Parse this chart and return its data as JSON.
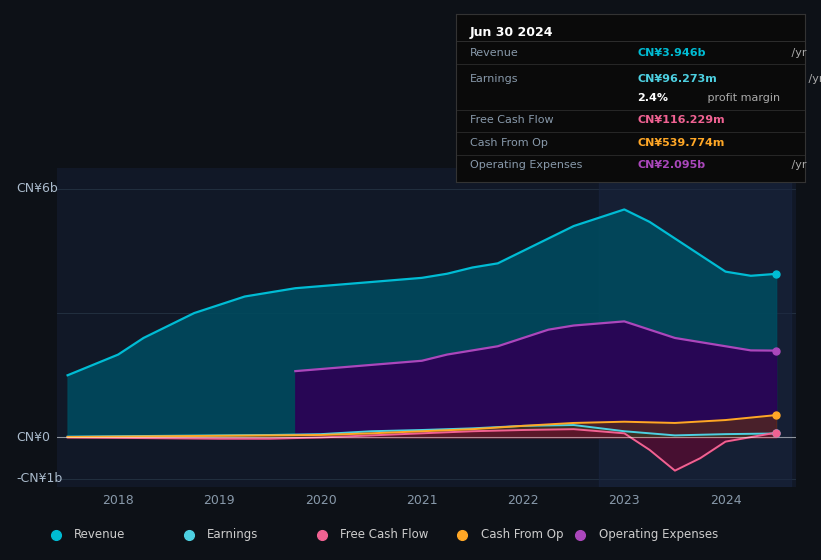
{
  "bg_color": "#0d1117",
  "plot_bg": "#111827",
  "ylabel_top": "CN¥6b",
  "ylabel_zero": "CN¥0",
  "ylabel_neg": "-CN¥1b",
  "x_labels": [
    "2018",
    "2019",
    "2020",
    "2021",
    "2022",
    "2023",
    "2024"
  ],
  "legend_items": [
    {
      "label": "Revenue",
      "color": "#00bcd4"
    },
    {
      "label": "Earnings",
      "color": "#4dd0e1"
    },
    {
      "label": "Free Cash Flow",
      "color": "#f06292"
    },
    {
      "label": "Cash From Op",
      "color": "#ffa726"
    },
    {
      "label": "Operating Expenses",
      "color": "#ab47bc"
    }
  ],
  "tooltip_date": "Jun 30 2024",
  "tooltip_rows": [
    {
      "label": "Revenue",
      "value": "CN¥3.946b",
      "suffix": " /yr",
      "color": "#00bcd4",
      "bold": true
    },
    {
      "label": "Earnings",
      "value": "CN¥96.273m",
      "suffix": " /yr",
      "color": "#4dd0e1",
      "bold": true
    },
    {
      "label": "",
      "value": "2.4%",
      "suffix": " profit margin",
      "color": "#ffffff",
      "bold": true
    },
    {
      "label": "Free Cash Flow",
      "value": "CN¥116.229m",
      "suffix": " /yr",
      "color": "#f06292",
      "bold": true
    },
    {
      "label": "Cash From Op",
      "value": "CN¥539.774m",
      "suffix": " /yr",
      "color": "#ffa726",
      "bold": true
    },
    {
      "label": "Operating Expenses",
      "value": "CN¥2.095b",
      "suffix": " /yr",
      "color": "#ab47bc",
      "bold": true
    }
  ],
  "revenue": {
    "color": "#00bcd4",
    "fill_color": "#004a5e",
    "x": [
      2017.5,
      2018.0,
      2018.25,
      2018.5,
      2018.75,
      2019.0,
      2019.25,
      2019.5,
      2019.75,
      2020.0,
      2020.25,
      2020.5,
      2020.75,
      2021.0,
      2021.25,
      2021.5,
      2021.75,
      2022.0,
      2022.25,
      2022.5,
      2022.75,
      2023.0,
      2023.25,
      2023.5,
      2023.75,
      2024.0,
      2024.25,
      2024.5
    ],
    "y": [
      1.5,
      2.0,
      2.4,
      2.7,
      3.0,
      3.2,
      3.4,
      3.5,
      3.6,
      3.65,
      3.7,
      3.75,
      3.8,
      3.85,
      3.95,
      4.1,
      4.2,
      4.5,
      4.8,
      5.1,
      5.3,
      5.5,
      5.2,
      4.8,
      4.4,
      4.0,
      3.9,
      3.946
    ]
  },
  "operating_expenses": {
    "color": "#ab47bc",
    "fill_color": "#2d0055",
    "x": [
      2019.75,
      2020.0,
      2020.25,
      2020.5,
      2020.75,
      2021.0,
      2021.25,
      2021.5,
      2021.75,
      2022.0,
      2022.25,
      2022.5,
      2022.75,
      2023.0,
      2023.25,
      2023.5,
      2023.75,
      2024.0,
      2024.25,
      2024.5
    ],
    "y": [
      1.6,
      1.65,
      1.7,
      1.75,
      1.8,
      1.85,
      2.0,
      2.1,
      2.2,
      2.4,
      2.6,
      2.7,
      2.75,
      2.8,
      2.6,
      2.4,
      2.3,
      2.2,
      2.1,
      2.095
    ]
  },
  "earnings": {
    "color": "#4dd0e1",
    "fill_color": "#003d40",
    "x": [
      2017.5,
      2018.0,
      2018.5,
      2019.0,
      2019.5,
      2020.0,
      2020.5,
      2021.0,
      2021.5,
      2022.0,
      2022.5,
      2023.0,
      2023.5,
      2024.0,
      2024.5
    ],
    "y": [
      0.02,
      0.03,
      0.04,
      0.05,
      0.06,
      0.08,
      0.15,
      0.18,
      0.22,
      0.28,
      0.3,
      0.15,
      0.05,
      0.08,
      0.09626
    ]
  },
  "free_cash_flow": {
    "color": "#f06292",
    "fill_color": "#7a0030",
    "x": [
      2017.5,
      2018.0,
      2018.5,
      2019.0,
      2019.5,
      2020.0,
      2020.5,
      2021.0,
      2021.5,
      2022.0,
      2022.5,
      2023.0,
      2023.25,
      2023.5,
      2023.75,
      2024.0,
      2024.5
    ],
    "y": [
      0.0,
      -0.01,
      -0.02,
      -0.03,
      -0.03,
      0.0,
      0.05,
      0.1,
      0.15,
      0.18,
      0.2,
      0.1,
      -0.3,
      -0.8,
      -0.5,
      -0.1,
      0.116
    ]
  },
  "cash_from_op": {
    "color": "#ffa726",
    "fill_color": "#6b3a00",
    "x": [
      2017.5,
      2018.0,
      2018.5,
      2019.0,
      2019.5,
      2020.0,
      2020.5,
      2021.0,
      2021.5,
      2022.0,
      2022.5,
      2023.0,
      2023.5,
      2024.0,
      2024.5
    ],
    "y": [
      0.01,
      0.02,
      0.03,
      0.04,
      0.05,
      0.06,
      0.1,
      0.15,
      0.2,
      0.28,
      0.35,
      0.38,
      0.35,
      0.42,
      0.5398
    ]
  },
  "highlight_x_start": 2022.75,
  "highlight_x_end": 2024.65,
  "ylim": [
    -1.2,
    6.5
  ],
  "xlim": [
    2017.4,
    2024.7
  ],
  "x_ticks": [
    2018,
    2019,
    2020,
    2021,
    2022,
    2023,
    2024
  ]
}
